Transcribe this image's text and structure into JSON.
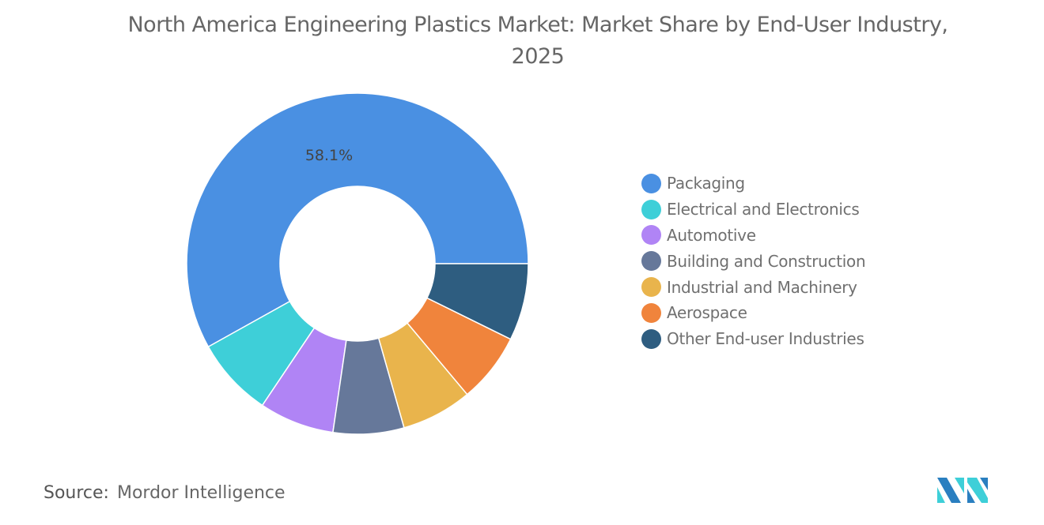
{
  "chart_data": {
    "type": "pie",
    "variant": "donut",
    "title": "North America Engineering Plastics Market: Market Share by End-User Industry, 2025",
    "categories": [
      "Packaging",
      "Electrical and Electronics",
      "Automotive",
      "Building and Construction",
      "Industrial and Machinery",
      "Aerospace",
      "Other End-user Industries"
    ],
    "values": [
      58.1,
      7.5,
      7.1,
      6.7,
      6.7,
      6.6,
      7.3
    ],
    "unit": "%",
    "data_labels": [
      {
        "category": "Packaging",
        "text": "58.1%"
      }
    ],
    "colors": [
      "#4a90e2",
      "#3ecfd8",
      "#b084f5",
      "#66789a",
      "#e9b44c",
      "#f0843c",
      "#2e5d80"
    ],
    "legend_position": "right"
  },
  "source": {
    "label": "Source:",
    "value": "Mordor Intelligence"
  },
  "logo": {
    "text": "Mordor Intelligence",
    "colors": [
      "#2a7fc0",
      "#3ecfd8"
    ]
  }
}
